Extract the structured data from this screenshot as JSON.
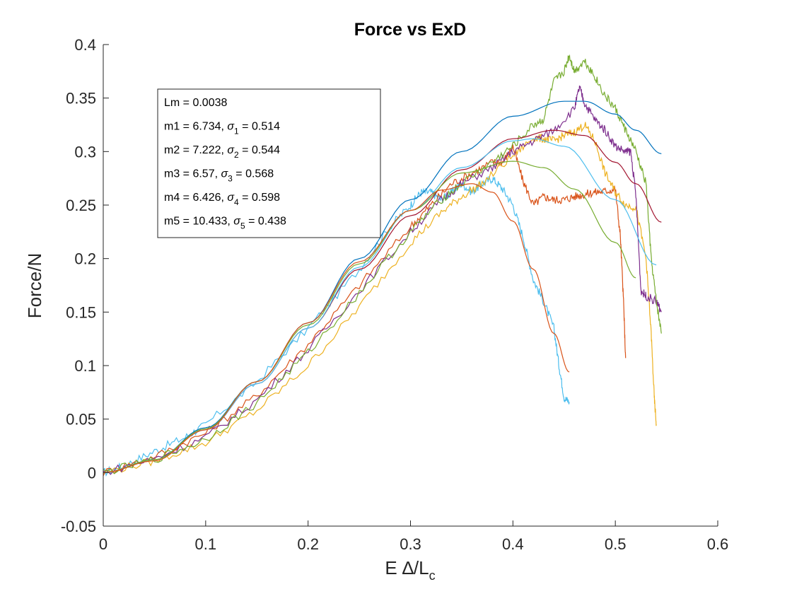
{
  "chart_data": {
    "type": "line",
    "title": "Force vs ExD",
    "xlabel": {
      "main": "E ∆/L",
      "sub": "c"
    },
    "ylabel": "Force/N",
    "xlim": [
      0,
      0.6
    ],
    "ylim": [
      -0.05,
      0.4
    ],
    "x_ticks": [
      0,
      0.1,
      0.2,
      0.3,
      0.4,
      0.5,
      0.6
    ],
    "x_tick_labels": [
      "0",
      "0.1",
      "0.2",
      "0.3",
      "0.4",
      "0.5",
      "0.6"
    ],
    "y_ticks": [
      -0.05,
      0,
      0.05,
      0.1,
      0.15,
      0.2,
      0.25,
      0.3,
      0.35,
      0.4
    ],
    "y_tick_labels": [
      "-0.05",
      "0",
      "0.05",
      "0.1",
      "0.15",
      "0.2",
      "0.25",
      "0.3",
      "0.35",
      "0.4"
    ],
    "grid": false,
    "legend_position": "top-left",
    "annotation": [
      {
        "text": "Lm = 0.0038"
      },
      {
        "pre": "m1 = 6.734, ",
        "sym": "σ",
        "sub": "1",
        "post": " = 0.514"
      },
      {
        "pre": "m2 = 7.222, ",
        "sym": "σ",
        "sub": "2",
        "post": " = 0.544"
      },
      {
        "pre": "m3 = 6.57, ",
        "sym": "σ",
        "sub": "3",
        "post": " = 0.568"
      },
      {
        "pre": "m4 = 6.426, ",
        "sym": "σ",
        "sub": "4",
        "post": " = 0.598"
      },
      {
        "pre": "m5 = 10.433, ",
        "sym": "σ",
        "sub": "5",
        "post": " = 0.438"
      }
    ],
    "series": [
      {
        "kind": "data",
        "color": "#4DBEEE",
        "x": [
          0,
          0.02,
          0.05,
          0.08,
          0.1,
          0.15,
          0.2,
          0.25,
          0.28,
          0.3,
          0.31,
          0.32,
          0.33,
          0.34,
          0.35,
          0.36,
          0.37,
          0.38,
          0.39,
          0.4,
          0.41,
          0.42,
          0.43,
          0.44,
          0.445,
          0.45,
          0.455
        ],
        "y": [
          0,
          0.006,
          0.02,
          0.033,
          0.045,
          0.085,
          0.135,
          0.19,
          0.23,
          0.25,
          0.262,
          0.262,
          0.255,
          0.262,
          0.27,
          0.262,
          0.27,
          0.275,
          0.265,
          0.25,
          0.22,
          0.18,
          0.16,
          0.135,
          0.1,
          0.07,
          0.066
        ]
      },
      {
        "kind": "data",
        "color": "#D95319",
        "x": [
          0,
          0.05,
          0.1,
          0.15,
          0.2,
          0.25,
          0.3,
          0.32,
          0.34,
          0.36,
          0.38,
          0.39,
          0.4,
          0.41,
          0.42,
          0.43,
          0.44,
          0.45,
          0.46,
          0.47,
          0.48,
          0.49,
          0.5,
          0.505,
          0.508,
          0.51
        ],
        "y": [
          0,
          0.015,
          0.037,
          0.072,
          0.12,
          0.175,
          0.23,
          0.25,
          0.27,
          0.28,
          0.29,
          0.29,
          0.305,
          0.272,
          0.25,
          0.258,
          0.255,
          0.255,
          0.258,
          0.26,
          0.262,
          0.263,
          0.265,
          0.22,
          0.16,
          0.107
        ]
      },
      {
        "kind": "data",
        "color": "#EDB120",
        "x": [
          0,
          0.05,
          0.1,
          0.15,
          0.2,
          0.25,
          0.3,
          0.33,
          0.35,
          0.37,
          0.4,
          0.42,
          0.43,
          0.44,
          0.45,
          0.46,
          0.47,
          0.48,
          0.49,
          0.5,
          0.51,
          0.52,
          0.53,
          0.535,
          0.538,
          0.54
        ],
        "y": [
          0,
          0.011,
          0.028,
          0.058,
          0.1,
          0.155,
          0.215,
          0.243,
          0.258,
          0.27,
          0.296,
          0.313,
          0.312,
          0.31,
          0.315,
          0.318,
          0.325,
          0.31,
          0.28,
          0.262,
          0.25,
          0.248,
          0.2,
          0.13,
          0.07,
          0.045
        ]
      },
      {
        "kind": "data",
        "color": "#7E2F8E",
        "x": [
          0,
          0.05,
          0.1,
          0.15,
          0.2,
          0.25,
          0.3,
          0.33,
          0.35,
          0.38,
          0.4,
          0.42,
          0.44,
          0.46,
          0.465,
          0.47,
          0.48,
          0.49,
          0.5,
          0.51,
          0.515,
          0.52,
          0.525,
          0.53,
          0.54,
          0.545
        ],
        "y": [
          0,
          0.013,
          0.033,
          0.068,
          0.115,
          0.17,
          0.225,
          0.255,
          0.27,
          0.285,
          0.3,
          0.31,
          0.32,
          0.34,
          0.36,
          0.345,
          0.33,
          0.32,
          0.305,
          0.3,
          0.3,
          0.26,
          0.17,
          0.165,
          0.16,
          0.15
        ]
      },
      {
        "kind": "data",
        "color": "#77AC30",
        "x": [
          0,
          0.05,
          0.1,
          0.15,
          0.2,
          0.25,
          0.3,
          0.33,
          0.35,
          0.38,
          0.4,
          0.42,
          0.43,
          0.44,
          0.45,
          0.455,
          0.46,
          0.47,
          0.48,
          0.49,
          0.5,
          0.51,
          0.52,
          0.53,
          0.535,
          0.54,
          0.545
        ],
        "y": [
          0,
          0.012,
          0.031,
          0.065,
          0.112,
          0.168,
          0.225,
          0.255,
          0.27,
          0.29,
          0.305,
          0.325,
          0.33,
          0.365,
          0.375,
          0.39,
          0.375,
          0.385,
          0.37,
          0.352,
          0.34,
          0.32,
          0.3,
          0.27,
          0.2,
          0.16,
          0.13
        ]
      },
      {
        "kind": "fit",
        "color": "#0072BD",
        "x": [
          0,
          0.05,
          0.1,
          0.15,
          0.2,
          0.25,
          0.3,
          0.35,
          0.4,
          0.45,
          0.47,
          0.5,
          0.52,
          0.545
        ],
        "y": [
          0,
          0.012,
          0.042,
          0.085,
          0.14,
          0.2,
          0.255,
          0.3,
          0.333,
          0.347,
          0.347,
          0.335,
          0.32,
          0.298
        ]
      },
      {
        "kind": "fit",
        "color": "#A2142F",
        "x": [
          0,
          0.05,
          0.1,
          0.15,
          0.2,
          0.25,
          0.3,
          0.35,
          0.4,
          0.44,
          0.47,
          0.5,
          0.52,
          0.545
        ],
        "y": [
          0,
          0.012,
          0.04,
          0.083,
          0.135,
          0.19,
          0.24,
          0.283,
          0.312,
          0.32,
          0.315,
          0.29,
          0.27,
          0.234
        ]
      },
      {
        "kind": "fit",
        "color": "#4DBEEE",
        "x": [
          0,
          0.05,
          0.1,
          0.15,
          0.2,
          0.25,
          0.3,
          0.35,
          0.4,
          0.42,
          0.45,
          0.5,
          0.54
        ],
        "y": [
          0,
          0.012,
          0.04,
          0.083,
          0.135,
          0.192,
          0.245,
          0.285,
          0.31,
          0.312,
          0.305,
          0.255,
          0.194
        ]
      },
      {
        "kind": "fit",
        "color": "#77AC30",
        "x": [
          0,
          0.05,
          0.1,
          0.15,
          0.2,
          0.25,
          0.3,
          0.35,
          0.4,
          0.43,
          0.46,
          0.5,
          0.52
        ],
        "y": [
          0,
          0.012,
          0.041,
          0.085,
          0.138,
          0.195,
          0.245,
          0.28,
          0.291,
          0.285,
          0.265,
          0.215,
          0.182
        ]
      },
      {
        "kind": "fit",
        "color": "#D95319",
        "x": [
          0,
          0.05,
          0.1,
          0.15,
          0.2,
          0.25,
          0.3,
          0.33,
          0.36,
          0.38,
          0.4,
          0.42,
          0.44,
          0.455
        ],
        "y": [
          0,
          0.011,
          0.04,
          0.085,
          0.14,
          0.197,
          0.245,
          0.264,
          0.27,
          0.262,
          0.235,
          0.19,
          0.13,
          0.094
        ]
      }
    ]
  }
}
